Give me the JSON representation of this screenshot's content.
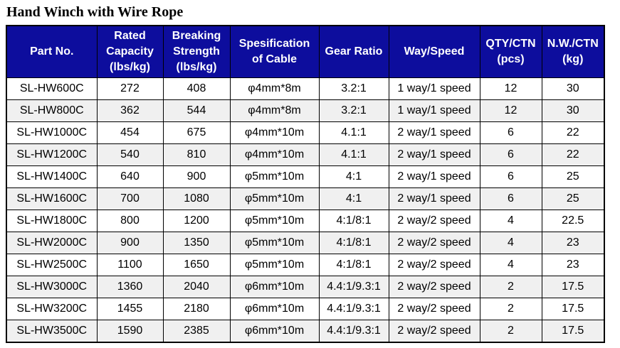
{
  "page": {
    "title": "Hand Winch with Wire Rope"
  },
  "table": {
    "colors": {
      "header_bg": "#0d0d9d",
      "header_fg": "#ffffff",
      "stripe_bg": "#f0f0f0",
      "border": "#000000"
    },
    "columns": [
      "Part No.",
      "Rated\nCapacity\n(lbs/kg)",
      "Breaking\nStrength\n(lbs/kg)",
      "Spesification\nof Cable",
      "Gear Ratio",
      "Way/Speed",
      "QTY/CTN\n(pcs)",
      "N.W./CTN\n(kg)"
    ],
    "rows": [
      [
        "SL-HW600C",
        "272",
        "408",
        "φ4mm*8m",
        "3.2:1",
        "1 way/1 speed",
        "12",
        "30"
      ],
      [
        "SL-HW800C",
        "362",
        "544",
        "φ4mm*8m",
        "3.2:1",
        "1 way/1 speed",
        "12",
        "30"
      ],
      [
        "SL-HW1000C",
        "454",
        "675",
        "φ4mm*10m",
        "4.1:1",
        "2 way/1 speed",
        "6",
        "22"
      ],
      [
        "SL-HW1200C",
        "540",
        "810",
        "φ4mm*10m",
        "4.1:1",
        "2 way/1 speed",
        "6",
        "22"
      ],
      [
        "SL-HW1400C",
        "640",
        "900",
        "φ5mm*10m",
        "4:1",
        "2 way/1 speed",
        "6",
        "25"
      ],
      [
        "SL-HW1600C",
        "700",
        "1080",
        "φ5mm*10m",
        "4:1",
        "2 way/1 speed",
        "6",
        "25"
      ],
      [
        "SL-HW1800C",
        "800",
        "1200",
        "φ5mm*10m",
        "4:1/8:1",
        "2 way/2 speed",
        "4",
        "22.5"
      ],
      [
        "SL-HW2000C",
        "900",
        "1350",
        "φ5mm*10m",
        "4:1/8:1",
        "2 way/2 speed",
        "4",
        "23"
      ],
      [
        "SL-HW2500C",
        "1100",
        "1650",
        "φ5mm*10m",
        "4:1/8:1",
        "2 way/2 speed",
        "4",
        "23"
      ],
      [
        "SL-HW3000C",
        "1360",
        "2040",
        "φ6mm*10m",
        "4.4:1/9.3:1",
        "2 way/2 speed",
        "2",
        "17.5"
      ],
      [
        "SL-HW3200C",
        "1455",
        "2180",
        "φ6mm*10m",
        "4.4:1/9.3:1",
        "2 way/2 speed",
        "2",
        "17.5"
      ],
      [
        "SL-HW3500C",
        "1590",
        "2385",
        "φ6mm*10m",
        "4.4:1/9.3:1",
        "2 way/2 speed",
        "2",
        "17.5"
      ]
    ]
  }
}
